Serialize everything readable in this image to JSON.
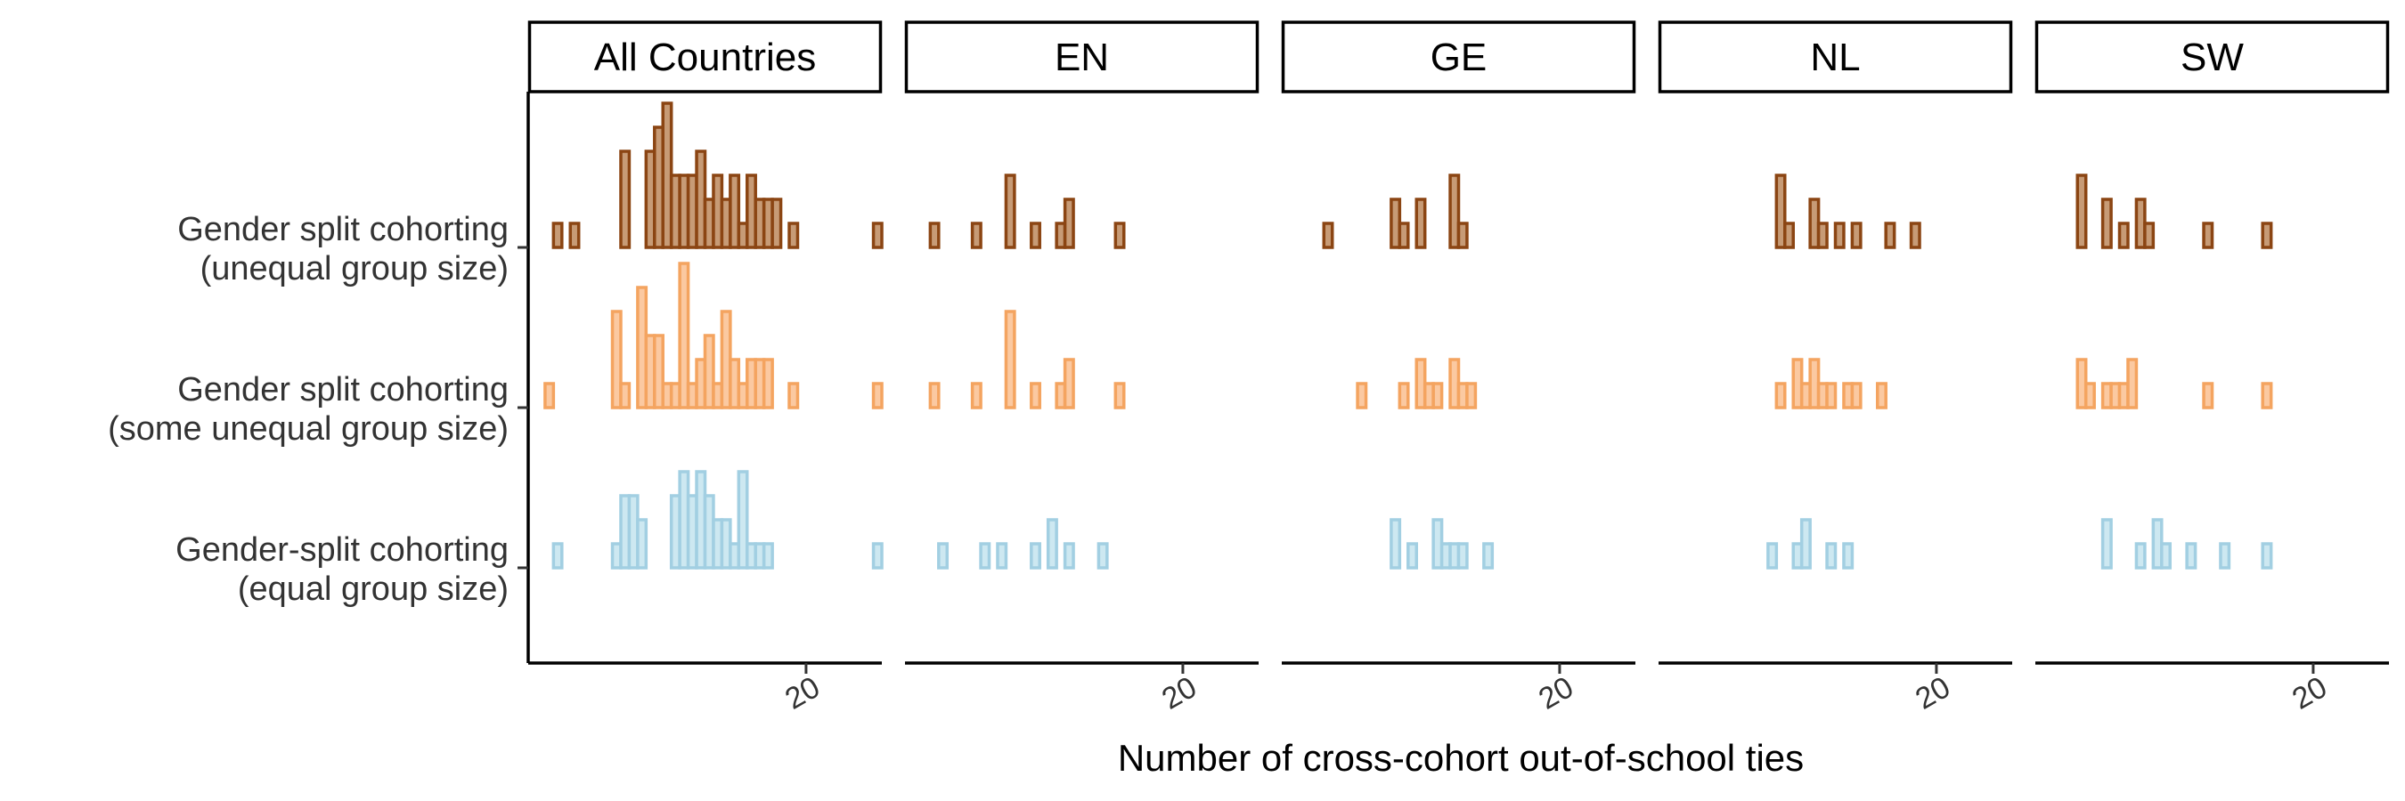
{
  "chart_data": {
    "type": "histogram-ridgeline",
    "xlabel": "Number of cross-cohort out-of-school ties",
    "x_ticks": [
      20
    ],
    "xlim": [
      3.5,
      24.5
    ],
    "bin_width": 0.5,
    "panels": [
      "All Countries",
      "EN",
      "GE",
      "NL",
      "SW"
    ],
    "rows": [
      {
        "key": "unequal",
        "label_lines": [
          "Gender split cohorting",
          "(unequal group size)"
        ],
        "fill": "#C79B76",
        "stroke": "#8B4513"
      },
      {
        "key": "some",
        "label_lines": [
          "Gender split cohorting",
          "(some unequal group size)"
        ],
        "fill": "#FBC9A1",
        "stroke": "#F4A460"
      },
      {
        "key": "equal",
        "label_lines": [
          "Gender-split cohorting",
          "(equal group size)"
        ],
        "fill": "#CDE8F1",
        "stroke": "#A2CFE2"
      }
    ],
    "counts": {
      "All Countries": {
        "unequal": [
          [
            5,
            1
          ],
          [
            5.5,
            0
          ],
          [
            6,
            1
          ],
          [
            6.5,
            0
          ],
          [
            9,
            4
          ],
          [
            9.5,
            0
          ],
          [
            10.5,
            4
          ],
          [
            11,
            5
          ],
          [
            11.5,
            6
          ],
          [
            12,
            3
          ],
          [
            12.5,
            3
          ],
          [
            13,
            3
          ],
          [
            13.5,
            4
          ],
          [
            14,
            2
          ],
          [
            14.5,
            3
          ],
          [
            15,
            2
          ],
          [
            15.5,
            3
          ],
          [
            16,
            1
          ],
          [
            16.5,
            3
          ],
          [
            17,
            2
          ],
          [
            17.5,
            2
          ],
          [
            18,
            2
          ],
          [
            18.5,
            0
          ],
          [
            19,
            1
          ],
          [
            24,
            1
          ]
        ],
        "some": [
          [
            4.5,
            1
          ],
          [
            8.5,
            4
          ],
          [
            9,
            1
          ],
          [
            10,
            5
          ],
          [
            10.5,
            3
          ],
          [
            11,
            3
          ],
          [
            11.5,
            1
          ],
          [
            12,
            1
          ],
          [
            12.5,
            6
          ],
          [
            13,
            1
          ],
          [
            13.5,
            2
          ],
          [
            14,
            3
          ],
          [
            14.5,
            1
          ],
          [
            15,
            4
          ],
          [
            15.5,
            2
          ],
          [
            16,
            1
          ],
          [
            16.5,
            2
          ],
          [
            17,
            2
          ],
          [
            17.5,
            2
          ],
          [
            18,
            0
          ],
          [
            18.5,
            0
          ],
          [
            19,
            1
          ],
          [
            24,
            1
          ]
        ],
        "equal": [
          [
            5,
            1
          ],
          [
            8.5,
            1
          ],
          [
            9,
            3
          ],
          [
            9.5,
            3
          ],
          [
            10,
            2
          ],
          [
            10.5,
            0
          ],
          [
            11,
            0
          ],
          [
            11.5,
            0
          ],
          [
            12,
            3
          ],
          [
            12.5,
            4
          ],
          [
            13,
            3
          ],
          [
            13.5,
            4
          ],
          [
            14,
            3
          ],
          [
            14.5,
            2
          ],
          [
            15,
            2
          ],
          [
            15.5,
            1
          ],
          [
            16,
            4
          ],
          [
            16.5,
            1
          ],
          [
            17,
            1
          ],
          [
            17.5,
            1
          ],
          [
            18,
            0
          ],
          [
            18.5,
            0
          ],
          [
            24,
            1
          ]
        ]
      },
      "EN": {
        "unequal": [
          [
            5,
            1
          ],
          [
            7.5,
            1
          ],
          [
            9.5,
            3
          ],
          [
            11,
            1
          ],
          [
            12.5,
            1
          ],
          [
            13,
            2
          ],
          [
            16,
            1
          ]
        ],
        "some": [
          [
            5,
            1
          ],
          [
            7.5,
            1
          ],
          [
            9.5,
            4
          ],
          [
            11,
            1
          ],
          [
            12.5,
            1
          ],
          [
            13,
            2
          ],
          [
            16,
            1
          ]
        ],
        "equal": [
          [
            5.5,
            1
          ],
          [
            8,
            1
          ],
          [
            9,
            1
          ],
          [
            11,
            1
          ],
          [
            12,
            2
          ],
          [
            13,
            1
          ],
          [
            15,
            1
          ]
        ]
      },
      "GE": {
        "unequal": [
          [
            6,
            1
          ],
          [
            10,
            2
          ],
          [
            10.5,
            1
          ],
          [
            11.5,
            2
          ],
          [
            13.5,
            3
          ],
          [
            14,
            1
          ]
        ],
        "some": [
          [
            8,
            1
          ],
          [
            10.5,
            1
          ],
          [
            11.5,
            2
          ],
          [
            12,
            1
          ],
          [
            12.5,
            1
          ],
          [
            13.5,
            2
          ],
          [
            14,
            1
          ],
          [
            14.5,
            1
          ]
        ],
        "equal": [
          [
            10,
            2
          ],
          [
            11,
            1
          ],
          [
            12.5,
            2
          ],
          [
            13,
            1
          ],
          [
            13.5,
            1
          ],
          [
            14,
            1
          ],
          [
            15.5,
            1
          ]
        ]
      },
      "NL": {
        "unequal": [
          [
            10.5,
            3
          ],
          [
            11,
            1
          ],
          [
            12.5,
            2
          ],
          [
            13,
            1
          ],
          [
            14,
            1
          ],
          [
            15,
            1
          ],
          [
            17,
            1
          ],
          [
            18.5,
            1
          ]
        ],
        "some": [
          [
            10.5,
            1
          ],
          [
            11.5,
            2
          ],
          [
            12,
            1
          ],
          [
            12.5,
            2
          ],
          [
            13,
            1
          ],
          [
            13.5,
            1
          ],
          [
            14.5,
            1
          ],
          [
            15,
            1
          ],
          [
            16.5,
            1
          ]
        ],
        "equal": [
          [
            10,
            1
          ],
          [
            11.5,
            1
          ],
          [
            12,
            2
          ],
          [
            13.5,
            1
          ],
          [
            14.5,
            1
          ]
        ]
      },
      "SW": {
        "unequal": [
          [
            6,
            3
          ],
          [
            7.5,
            2
          ],
          [
            8.5,
            1
          ],
          [
            9.5,
            2
          ],
          [
            10,
            1
          ],
          [
            13.5,
            1
          ],
          [
            17,
            1
          ]
        ],
        "some": [
          [
            6,
            2
          ],
          [
            6.5,
            1
          ],
          [
            7.5,
            1
          ],
          [
            8,
            1
          ],
          [
            8.5,
            1
          ],
          [
            9,
            2
          ],
          [
            13.5,
            1
          ],
          [
            17,
            1
          ]
        ],
        "equal": [
          [
            7.5,
            2
          ],
          [
            9.5,
            1
          ],
          [
            10.5,
            2
          ],
          [
            11,
            1
          ],
          [
            12.5,
            1
          ],
          [
            14.5,
            1
          ],
          [
            17,
            1
          ]
        ]
      }
    }
  }
}
